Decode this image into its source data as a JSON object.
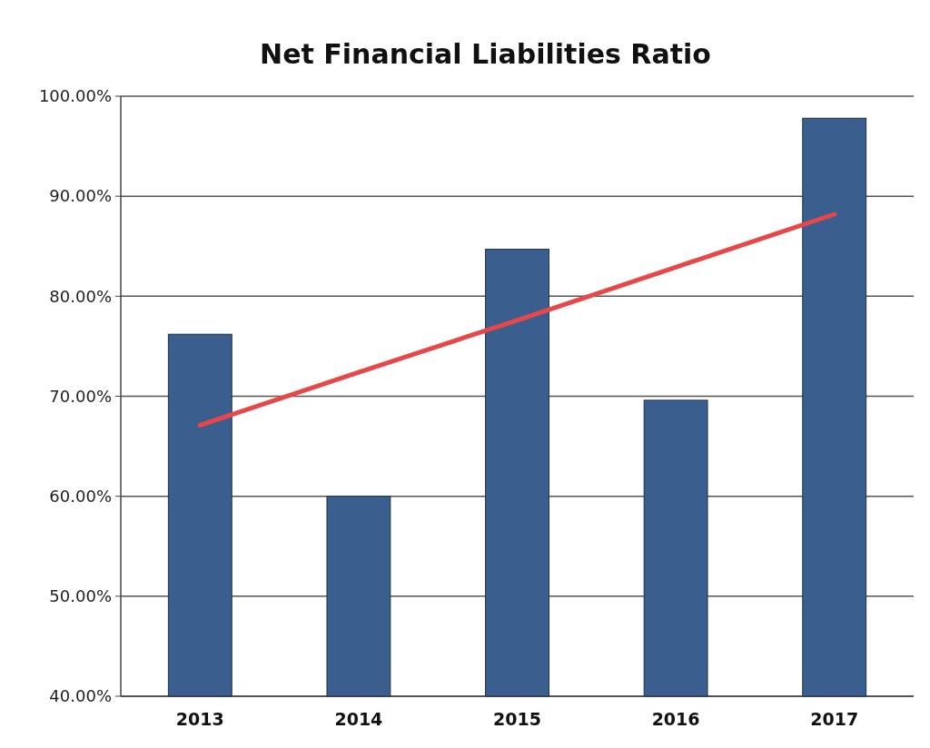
{
  "chart_data": {
    "type": "bar",
    "title": "Net Financial Liabilities Ratio",
    "categories": [
      "2013",
      "2014",
      "2015",
      "2016",
      "2017"
    ],
    "series": [
      {
        "color": "#3a5f8f",
        "values": [
          76.2,
          60.0,
          84.7,
          69.6,
          97.8
        ]
      },
      {
        "type": "line",
        "color": "#e8474a",
        "values": [
          67.1,
          72.4,
          77.6,
          82.9,
          88.2
        ]
      }
    ],
    "ylim": [
      40,
      100
    ],
    "yticks": [
      {
        "value": 40,
        "label": "40.00%"
      },
      {
        "value": 50,
        "label": "50.00%"
      },
      {
        "value": 60,
        "label": "60.00%"
      },
      {
        "value": 70,
        "label": "70.00%"
      },
      {
        "value": 80,
        "label": "80.00%"
      },
      {
        "value": 90,
        "label": "90.00%"
      },
      {
        "value": 100,
        "label": "100.00%"
      }
    ],
    "grid": "y"
  }
}
